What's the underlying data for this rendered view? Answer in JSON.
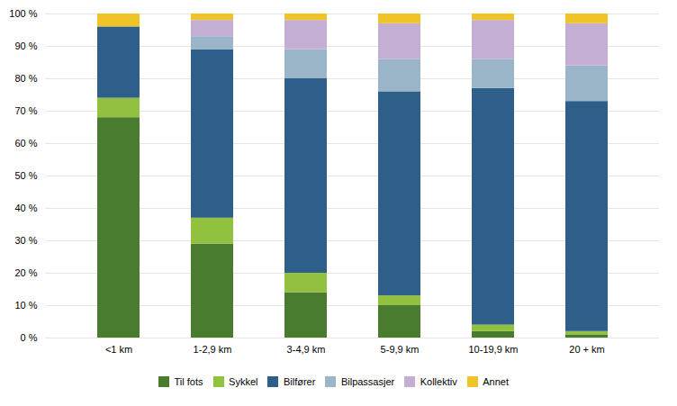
{
  "chart_data": {
    "type": "bar",
    "stacked": true,
    "categories": [
      "<1 km",
      "1-2,9 km",
      "3-4,9 km",
      "5-9,9 km",
      "10-19,9 km",
      "20 + km"
    ],
    "series": [
      {
        "name": "Til fots",
        "color": "#4a7c2f",
        "values": [
          68,
          29,
          14,
          10,
          2,
          1
        ]
      },
      {
        "name": "Sykkel",
        "color": "#92c140",
        "values": [
          6,
          8,
          6,
          3,
          2,
          1
        ]
      },
      {
        "name": "Bilfører",
        "color": "#2e5f8a",
        "values": [
          22,
          52,
          60,
          63,
          73,
          71
        ]
      },
      {
        "name": "Bilpassasjer",
        "color": "#9ab5c8",
        "values": [
          0,
          4,
          9,
          10,
          9,
          11
        ]
      },
      {
        "name": "Kollektiv",
        "color": "#c5aed4",
        "values": [
          0,
          5,
          9,
          11,
          12,
          13
        ]
      },
      {
        "name": "Annet",
        "color": "#f0c428",
        "values": [
          4,
          2,
          2,
          3,
          2,
          3
        ]
      }
    ],
    "ylim": [
      0,
      100
    ],
    "yticks": [
      {
        "value": 0,
        "label": "0 %"
      },
      {
        "value": 10,
        "label": "10 %"
      },
      {
        "value": 20,
        "label": "20 %"
      },
      {
        "value": 30,
        "label": "30 %"
      },
      {
        "value": 40,
        "label": "40 %"
      },
      {
        "value": 50,
        "label": "50 %"
      },
      {
        "value": 60,
        "label": "60 %"
      },
      {
        "value": 70,
        "label": "70 %"
      },
      {
        "value": 80,
        "label": "80 %"
      },
      {
        "value": 90,
        "label": "90 %"
      },
      {
        "value": 100,
        "label": "100 %"
      }
    ],
    "grid": true,
    "legend": "bottom"
  }
}
